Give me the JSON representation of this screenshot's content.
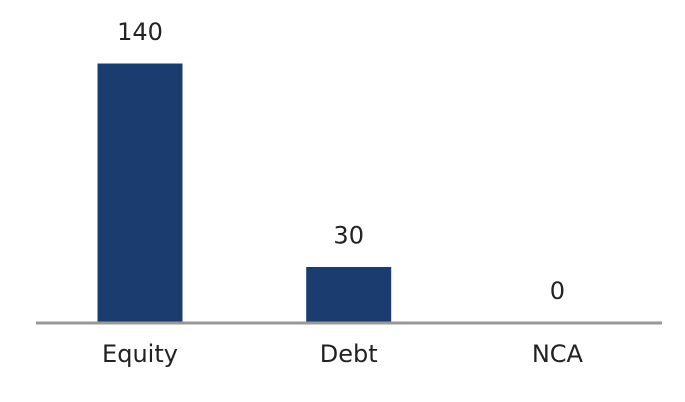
{
  "chart_data": {
    "type": "bar",
    "categories": [
      "Equity",
      "Debt",
      "NCA"
    ],
    "values": [
      140,
      30,
      0
    ],
    "color": "#1b3c6f"
  }
}
